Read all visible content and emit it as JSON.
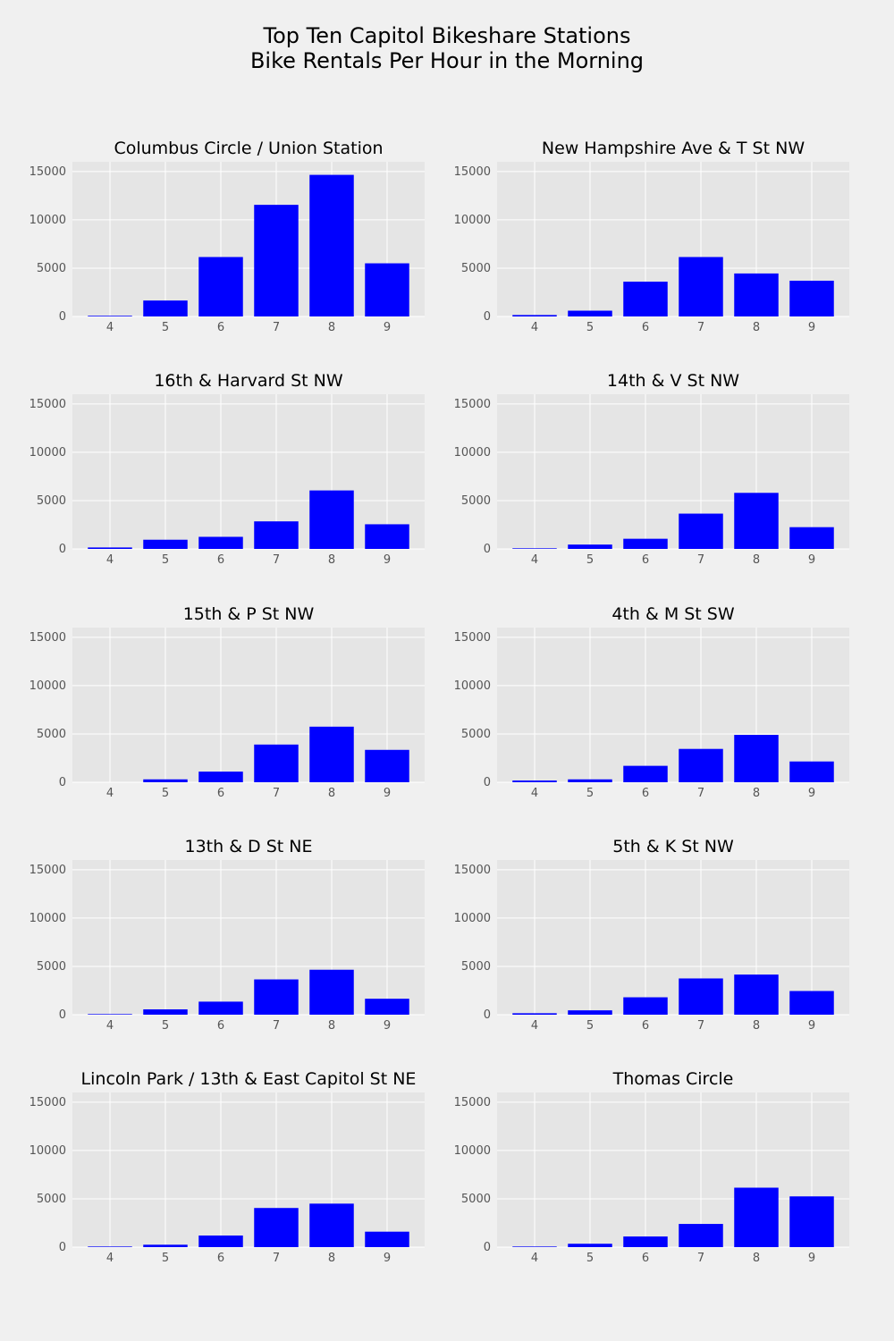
{
  "figure": {
    "title_line1": "Top Ten Capitol Bikeshare Stations",
    "title_line2": "Bike Rentals Per Hour in the Morning"
  },
  "colors": {
    "bar": "#0000ff",
    "panel": "#e5e5e5",
    "background": "#f0f0f0",
    "grid": "#ffffff"
  },
  "chart_data": [
    {
      "type": "bar",
      "title": "Columbus Circle / Union Station",
      "categories": [
        "4",
        "5",
        "6",
        "7",
        "8",
        "9"
      ],
      "values": [
        70,
        1650,
        6150,
        11550,
        14650,
        5500
      ],
      "ylim": [
        0,
        16000
      ],
      "yticks": [
        0,
        5000,
        10000,
        15000
      ],
      "grid": true
    },
    {
      "type": "bar",
      "title": "New Hampshire Ave & T St NW",
      "categories": [
        "4",
        "5",
        "6",
        "7",
        "8",
        "9"
      ],
      "values": [
        150,
        600,
        3600,
        6150,
        4450,
        3700
      ],
      "ylim": [
        0,
        16000
      ],
      "yticks": [
        0,
        5000,
        10000,
        15000
      ],
      "grid": true
    },
    {
      "type": "bar",
      "title": "16th & Harvard St NW",
      "categories": [
        "4",
        "5",
        "6",
        "7",
        "8",
        "9"
      ],
      "values": [
        150,
        950,
        1250,
        2850,
        6050,
        2550
      ],
      "ylim": [
        0,
        16000
      ],
      "yticks": [
        0,
        5000,
        10000,
        15000
      ],
      "grid": true
    },
    {
      "type": "bar",
      "title": "14th & V St NW",
      "categories": [
        "4",
        "5",
        "6",
        "7",
        "8",
        "9"
      ],
      "values": [
        60,
        450,
        1050,
        3650,
        5800,
        2250
      ],
      "ylim": [
        0,
        16000
      ],
      "yticks": [
        0,
        5000,
        10000,
        15000
      ],
      "grid": true
    },
    {
      "type": "bar",
      "title": "15th & P St NW",
      "categories": [
        "4",
        "5",
        "6",
        "7",
        "8",
        "9"
      ],
      "values": [
        0,
        300,
        1100,
        3900,
        5750,
        3350
      ],
      "ylim": [
        0,
        16000
      ],
      "yticks": [
        0,
        5000,
        10000,
        15000
      ],
      "grid": true
    },
    {
      "type": "bar",
      "title": "4th & M St SW",
      "categories": [
        "4",
        "5",
        "6",
        "7",
        "8",
        "9"
      ],
      "values": [
        180,
        300,
        1700,
        3450,
        4900,
        2150
      ],
      "ylim": [
        0,
        16000
      ],
      "yticks": [
        0,
        5000,
        10000,
        15000
      ],
      "grid": true
    },
    {
      "type": "bar",
      "title": "13th & D St NE",
      "categories": [
        "4",
        "5",
        "6",
        "7",
        "8",
        "9"
      ],
      "values": [
        60,
        550,
        1350,
        3650,
        4650,
        1650
      ],
      "ylim": [
        0,
        16000
      ],
      "yticks": [
        0,
        5000,
        10000,
        15000
      ],
      "grid": true
    },
    {
      "type": "bar",
      "title": "5th & K St NW",
      "categories": [
        "4",
        "5",
        "6",
        "7",
        "8",
        "9"
      ],
      "values": [
        150,
        450,
        1800,
        3750,
        4150,
        2450
      ],
      "ylim": [
        0,
        16000
      ],
      "yticks": [
        0,
        5000,
        10000,
        15000
      ],
      "grid": true
    },
    {
      "type": "bar",
      "title": "Lincoln Park / 13th & East Capitol St NE",
      "categories": [
        "4",
        "5",
        "6",
        "7",
        "8",
        "9"
      ],
      "values": [
        60,
        250,
        1200,
        4050,
        4500,
        1600
      ],
      "ylim": [
        0,
        16000
      ],
      "yticks": [
        0,
        5000,
        10000,
        15000
      ],
      "grid": true
    },
    {
      "type": "bar",
      "title": "Thomas Circle",
      "categories": [
        "4",
        "5",
        "6",
        "7",
        "8",
        "9"
      ],
      "values": [
        60,
        350,
        1100,
        2400,
        6150,
        5250
      ],
      "ylim": [
        0,
        16000
      ],
      "yticks": [
        0,
        5000,
        10000,
        15000
      ],
      "grid": true
    }
  ]
}
